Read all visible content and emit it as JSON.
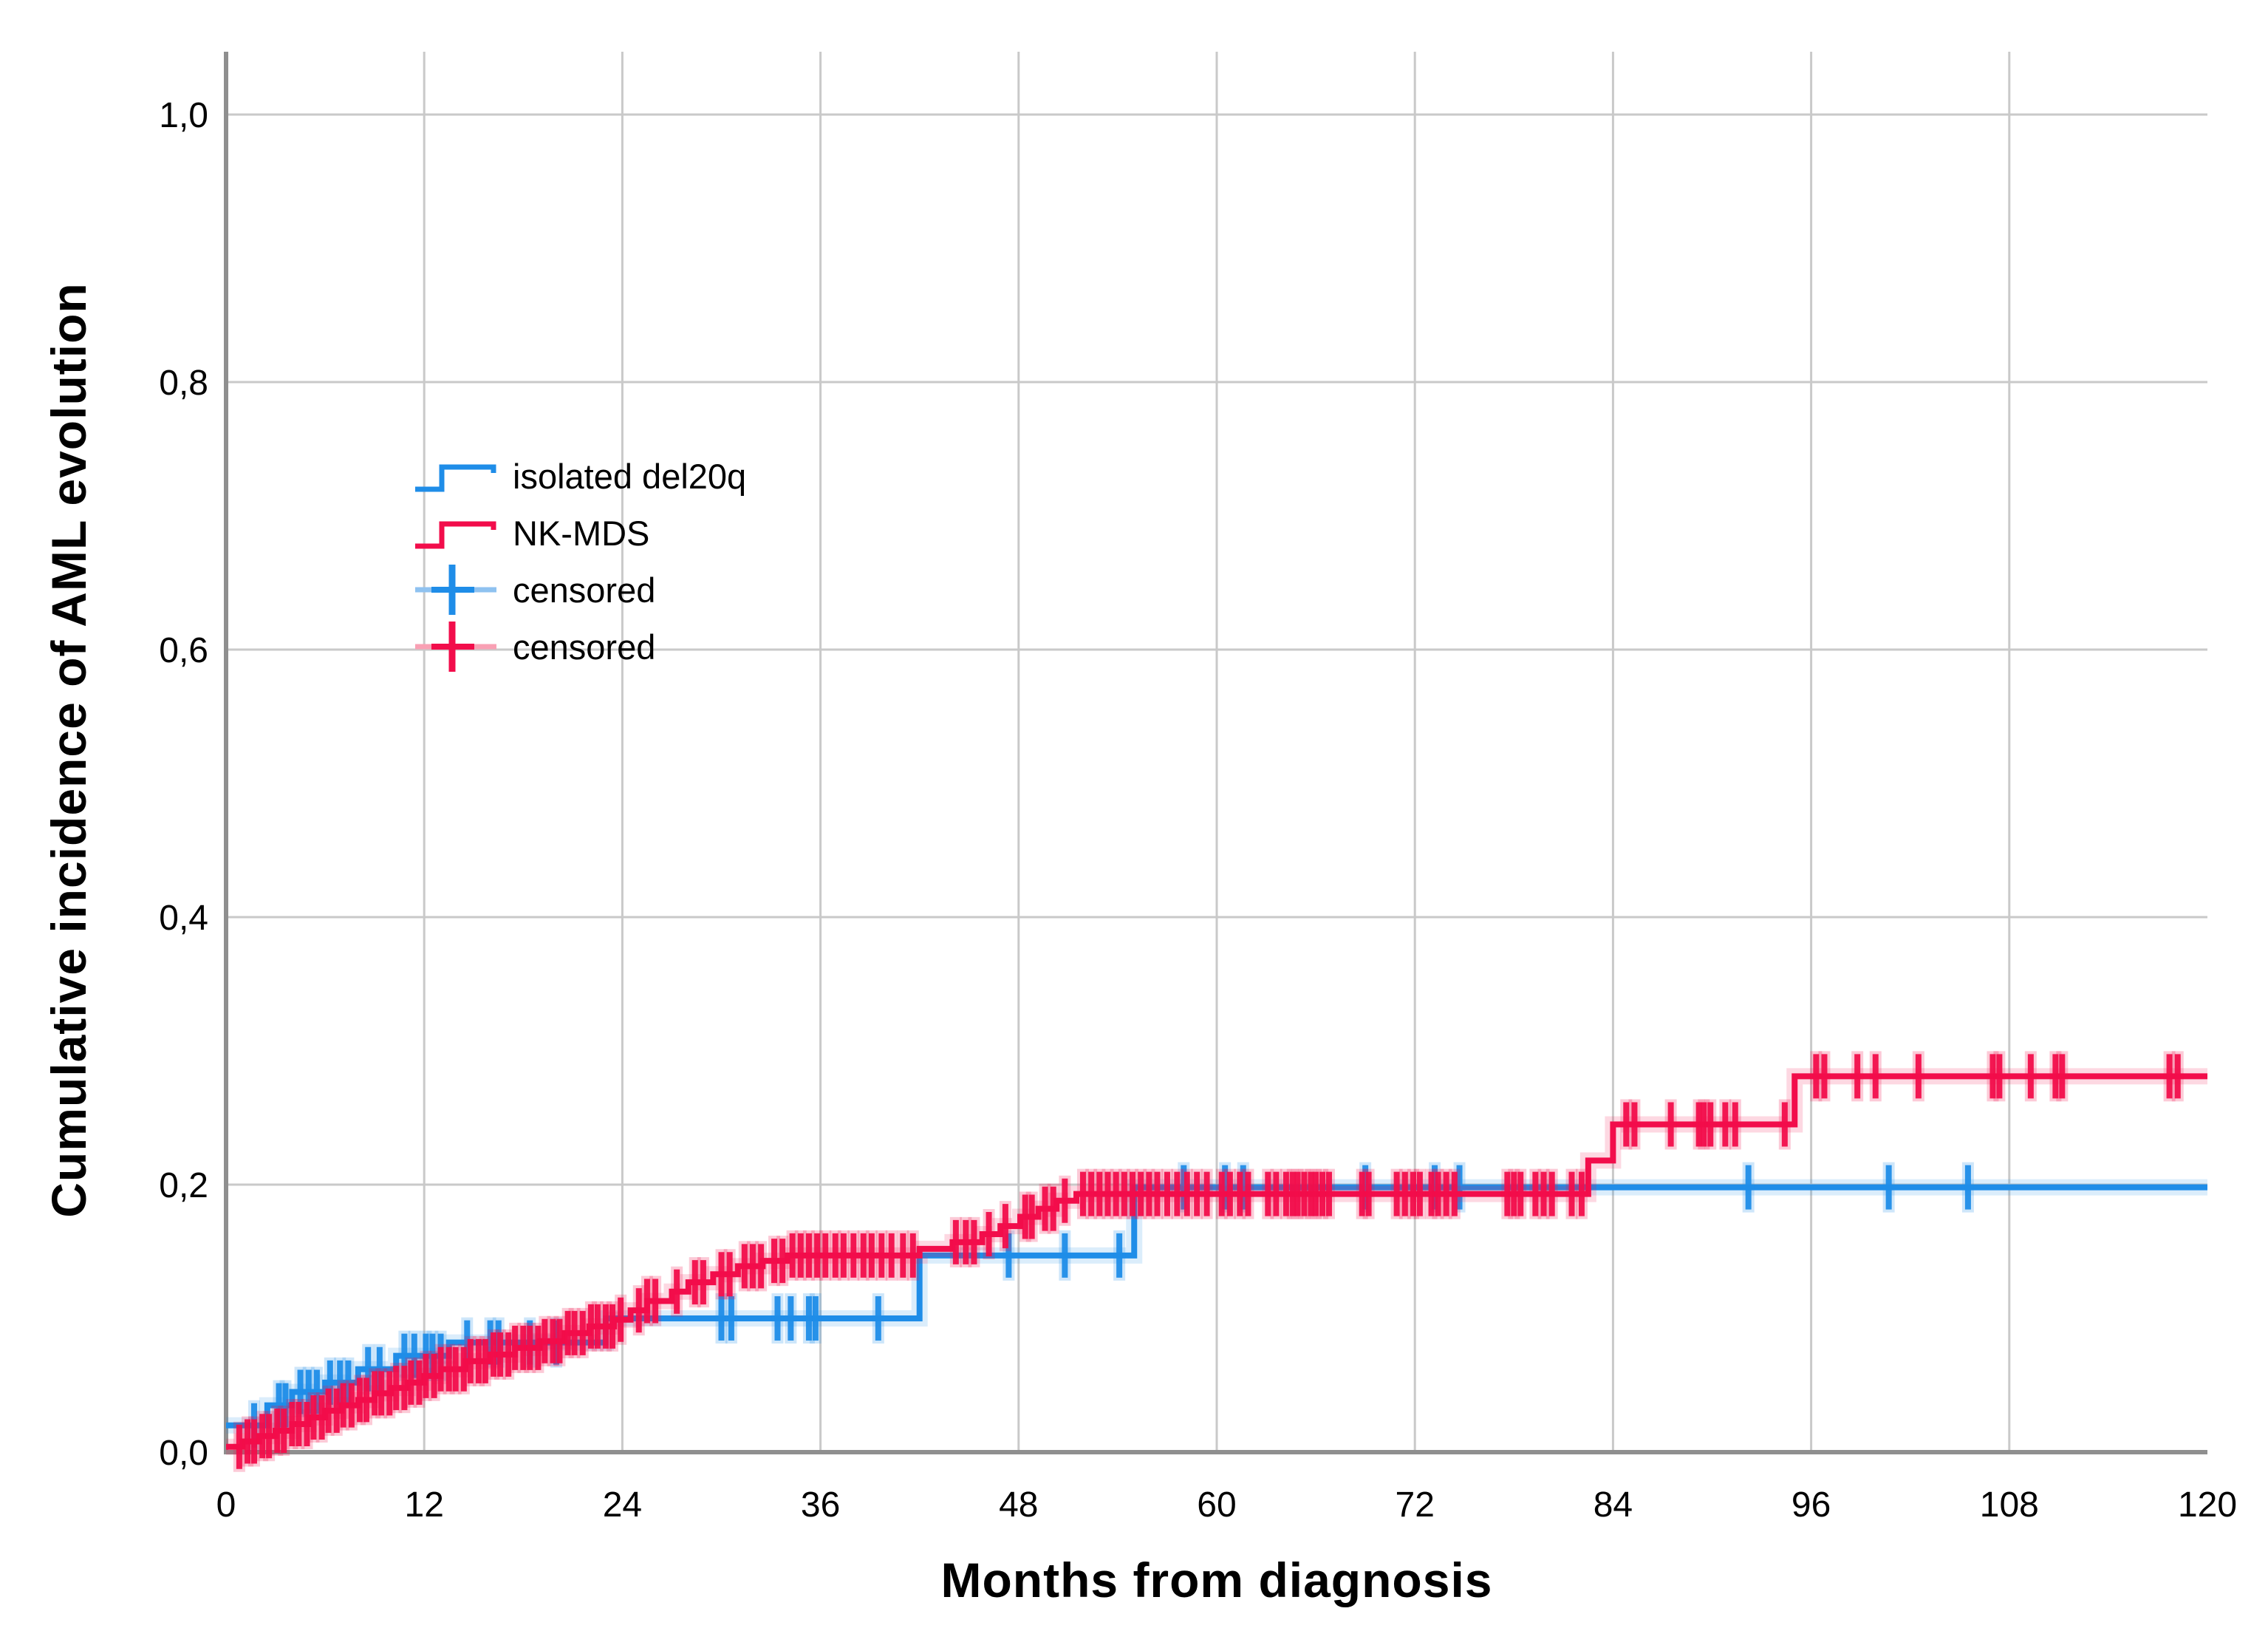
{
  "figure": {
    "x_axis_title": "Months from diagnosis",
    "y_axis_title": "Cumulative incidence of AML evolution",
    "x_ticks": [
      {
        "value": 0,
        "label": "0"
      },
      {
        "value": 12,
        "label": "12"
      },
      {
        "value": 24,
        "label": "24"
      },
      {
        "value": 36,
        "label": "36"
      },
      {
        "value": 48,
        "label": "48"
      },
      {
        "value": 60,
        "label": "60"
      },
      {
        "value": 72,
        "label": "72"
      },
      {
        "value": 84,
        "label": "84"
      },
      {
        "value": 96,
        "label": "96"
      },
      {
        "value": 108,
        "label": "108"
      },
      {
        "value": 120,
        "label": "120"
      }
    ],
    "y_ticks": [
      {
        "value": 0.0,
        "label": "0,0"
      },
      {
        "value": 0.2,
        "label": "0,2"
      },
      {
        "value": 0.4,
        "label": "0,4"
      },
      {
        "value": 0.6,
        "label": "0,6"
      },
      {
        "value": 0.8,
        "label": "0,8"
      },
      {
        "value": 1.0,
        "label": "1,0"
      }
    ],
    "grid_color": "#c9c9c9",
    "axis_color": "#8f8f8f",
    "text_color": "#000000"
  },
  "legend": {
    "items": [
      {
        "label": "isolated del20q",
        "symbol": "step-line",
        "color": "#1f8de8",
        "light_color": "#8fc2f0"
      },
      {
        "label": "NK-MDS",
        "symbol": "step-line",
        "color": "#f20d4b",
        "light_color": "#f9a0b4"
      },
      {
        "label": "censored",
        "symbol": "plus",
        "color": "#1f8de8",
        "light_color": "#8fc2f0"
      },
      {
        "label": "censored",
        "symbol": "plus",
        "color": "#f20d4b",
        "light_color": "#f9a0b4"
      }
    ]
  },
  "chart_data": {
    "type": "line",
    "subtype": "step-cumulative-incidence",
    "title": "",
    "xlabel": "Months from diagnosis",
    "ylabel": "Cumulative incidence of AML evolution",
    "xlim": [
      0,
      120
    ],
    "ylim": [
      0,
      1.0
    ],
    "grid": true,
    "legend_position": "upper-left-inside",
    "series": [
      {
        "name": "isolated del20q",
        "color": "#1f8de8",
        "steps": [
          [
            0,
            0.02
          ],
          [
            2.5,
            0.035
          ],
          [
            4,
            0.045
          ],
          [
            6,
            0.052
          ],
          [
            8,
            0.062
          ],
          [
            10.3,
            0.072
          ],
          [
            13.5,
            0.082
          ],
          [
            23,
            0.1
          ],
          [
            42,
            0.147
          ],
          [
            55,
            0.198
          ]
        ],
        "end_month": 120,
        "censored_months": [
          1.7,
          3.2,
          3.6,
          4.5,
          5.0,
          5.5,
          6.3,
          6.9,
          7.4,
          8.6,
          9.3,
          10.8,
          11.4,
          12.1,
          12.5,
          13.0,
          14.6,
          16.0,
          16.5,
          18.4,
          20.0,
          30.0,
          30.6,
          33.4,
          34.2,
          35.3,
          35.7,
          39.5,
          47.4,
          50.8,
          54.1,
          58.0,
          60.5,
          61.6,
          69.0,
          73.2,
          74.7,
          92.2,
          100.7,
          105.5
        ]
      },
      {
        "name": "NK-MDS",
        "color": "#f20d4b",
        "steps": [
          [
            0,
            0.004
          ],
          [
            1,
            0.008
          ],
          [
            2,
            0.012
          ],
          [
            3,
            0.016
          ],
          [
            4,
            0.021
          ],
          [
            5,
            0.026
          ],
          [
            6,
            0.031
          ],
          [
            7,
            0.035
          ],
          [
            8,
            0.039
          ],
          [
            9,
            0.044
          ],
          [
            10,
            0.048
          ],
          [
            11,
            0.052
          ],
          [
            12,
            0.057
          ],
          [
            13,
            0.062
          ],
          [
            14.5,
            0.068
          ],
          [
            16,
            0.073
          ],
          [
            17.5,
            0.078
          ],
          [
            19,
            0.083
          ],
          [
            20.5,
            0.089
          ],
          [
            22,
            0.094
          ],
          [
            23.5,
            0.099
          ],
          [
            24.5,
            0.106
          ],
          [
            25.5,
            0.113
          ],
          [
            27,
            0.12
          ],
          [
            28,
            0.127
          ],
          [
            29.5,
            0.133
          ],
          [
            31,
            0.139
          ],
          [
            32.5,
            0.143
          ],
          [
            34,
            0.147
          ],
          [
            42,
            0.152
          ],
          [
            44,
            0.157
          ],
          [
            45.8,
            0.163
          ],
          [
            46.9,
            0.169
          ],
          [
            48.1,
            0.176
          ],
          [
            49.2,
            0.182
          ],
          [
            50.3,
            0.188
          ],
          [
            51.5,
            0.193
          ],
          [
            82.5,
            0.218
          ],
          [
            84,
            0.245
          ],
          [
            95,
            0.281
          ]
        ],
        "end_month": 120,
        "censored_months": [
          0.8,
          1.3,
          1.7,
          2.2,
          2.6,
          3.1,
          3.5,
          4.0,
          4.4,
          4.9,
          5.3,
          5.8,
          6.2,
          6.7,
          7.1,
          7.6,
          8.1,
          8.5,
          9.0,
          9.4,
          9.9,
          10.3,
          10.8,
          11.2,
          11.7,
          12.1,
          12.6,
          13.0,
          13.5,
          13.9,
          14.4,
          14.8,
          15.3,
          15.7,
          16.2,
          16.6,
          17.1,
          17.5,
          18.0,
          18.4,
          18.9,
          19.3,
          19.8,
          20.2,
          20.7,
          21.1,
          21.6,
          22.1,
          22.5,
          23.0,
          23.4,
          23.9,
          25.0,
          25.5,
          26.0,
          27.3,
          28.4,
          28.9,
          30.0,
          30.5,
          31.4,
          31.9,
          32.4,
          33.2,
          33.7,
          34.3,
          34.8,
          35.3,
          35.8,
          36.3,
          36.9,
          37.4,
          38.0,
          38.6,
          39.1,
          39.7,
          40.3,
          41.0,
          41.6,
          44.2,
          44.8,
          45.3,
          46.2,
          47.2,
          48.4,
          48.8,
          49.6,
          50.1,
          50.8,
          51.9,
          52.4,
          52.9,
          53.4,
          53.9,
          54.4,
          54.9,
          55.4,
          55.9,
          56.4,
          57.0,
          57.6,
          58.2,
          58.8,
          59.4,
          60.3,
          60.8,
          61.4,
          61.9,
          63.1,
          63.6,
          64.2,
          64.6,
          64.9,
          65.3,
          65.7,
          66.0,
          66.4,
          66.8,
          68.8,
          69.2,
          70.9,
          71.4,
          71.9,
          72.3,
          73.0,
          73.4,
          73.9,
          74.4,
          77.6,
          78.0,
          78.4,
          79.3,
          79.8,
          80.3,
          81.5,
          82.1,
          84.8,
          85.3,
          87.5,
          89.2,
          89.5,
          89.9,
          90.8,
          91.4,
          94.4,
          96.3,
          96.8,
          98.8,
          99.9,
          102.5,
          107.0,
          107.4,
          109.3,
          110.8,
          111.2,
          117.7,
          118.2
        ]
      }
    ]
  }
}
